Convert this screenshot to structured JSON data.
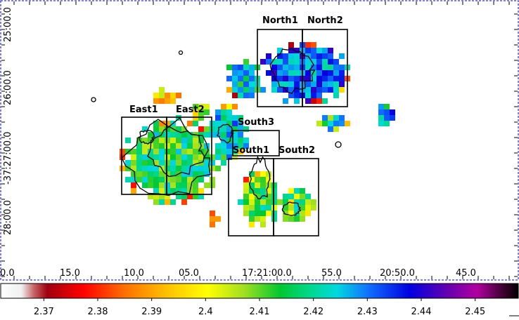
{
  "image": {
    "kind": "ds9-style colour map of a sky field with contours and box regions"
  },
  "regions": [
    {
      "name": "North1",
      "label": "North1"
    },
    {
      "name": "North2",
      "label": "North2"
    },
    {
      "name": "East1",
      "label": "East1"
    },
    {
      "name": "East2",
      "label": "East2"
    },
    {
      "name": "South3",
      "label": "South3"
    },
    {
      "name": "South1",
      "label": "South1"
    },
    {
      "name": "South2",
      "label": "South2"
    }
  ],
  "axes": {
    "ra_ticks": [
      "0.0",
      "15.0",
      "10.0",
      "05.0",
      "17:21:00.0",
      "55.0",
      "20:50.0",
      "45.0"
    ],
    "dec_ticks": [
      "25:00.0",
      "26:00.0",
      "-37:27:00.0",
      "28:00.0"
    ]
  },
  "colorbar": {
    "ticks": [
      "2.37",
      "2.38",
      "2.39",
      "2.4",
      "2.41",
      "2.42",
      "2.43",
      "2.44",
      "2.45"
    ],
    "min": 2.362,
    "max": 2.458
  },
  "colors": {
    "frame_border": "#0000cc",
    "region_box": "#000000"
  }
}
